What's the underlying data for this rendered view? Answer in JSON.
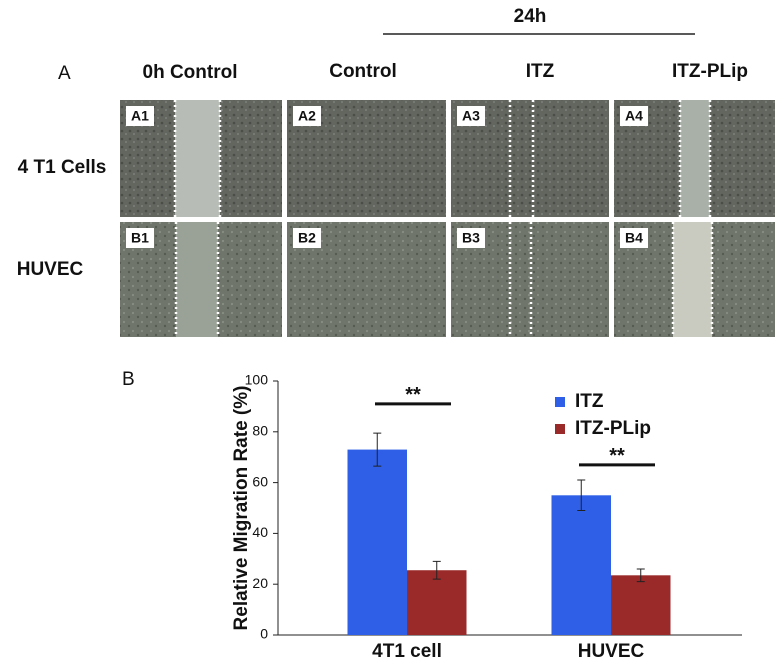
{
  "panel_a": {
    "label": "A",
    "time_label": "24h",
    "columns": [
      "0h Control",
      "Control",
      "ITZ",
      "ITZ-PLip"
    ],
    "rows": [
      {
        "label": "4  T1 Cells",
        "images": [
          "A1",
          "A2",
          "A3",
          "A4"
        ]
      },
      {
        "label": "HUVEC",
        "images": [
          "B1",
          "B2",
          "B3",
          "B4"
        ]
      }
    ]
  },
  "chart_data": {
    "type": "bar",
    "panel_label": "B",
    "y_label": "Relative Migration Rate (%)",
    "categories": [
      "4T1 cell",
      "HUVEC"
    ],
    "series": [
      {
        "name": "ITZ",
        "color": "#2f5fe6",
        "values": [
          73,
          55
        ],
        "errors": [
          6.5,
          6
        ]
      },
      {
        "name": "ITZ-PLip",
        "color": "#9a2a2a",
        "values": [
          25.5,
          23.5
        ],
        "errors": [
          3.5,
          2.5
        ]
      }
    ],
    "annotations": [
      "**",
      "**"
    ],
    "ylim": [
      0,
      100
    ],
    "yticks": [
      0,
      20,
      40,
      60,
      80,
      100
    ]
  }
}
